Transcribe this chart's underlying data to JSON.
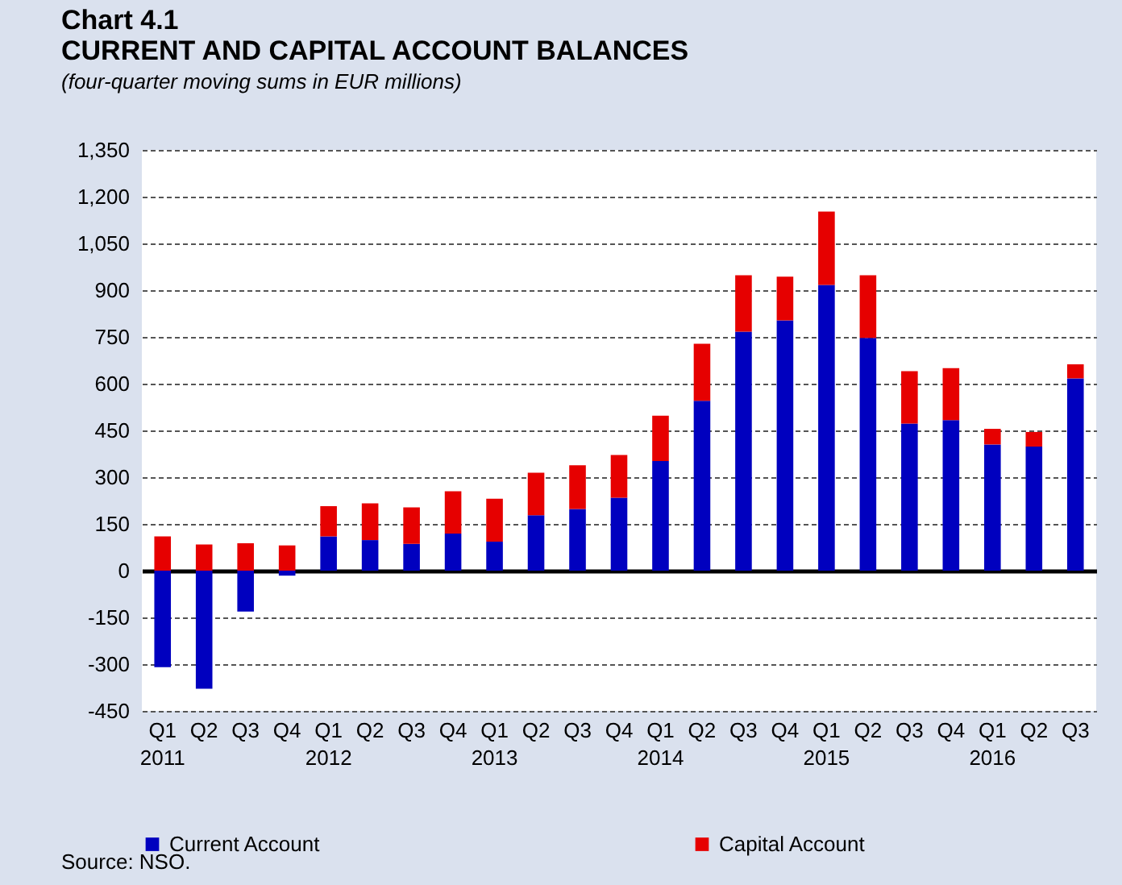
{
  "chart_data": {
    "type": "bar",
    "title": "Chart 4.1\nCURRENT AND CAPITAL ACCOUNT BALANCES",
    "subtitle": "(four-quarter moving sums in EUR millions)",
    "categories": [
      "Q1\n2011",
      "Q2",
      "Q3",
      "Q4",
      "Q1\n2012",
      "Q2",
      "Q3",
      "Q4",
      "Q1\n2013",
      "Q2",
      "Q3",
      "Q4",
      "Q1\n2014",
      "Q2",
      "Q3",
      "Q4",
      "Q1\n2015",
      "Q2",
      "Q3",
      "Q4",
      "Q1\n2016",
      "Q2",
      "Q3"
    ],
    "series": [
      {
        "name": "Current Account",
        "color": "#0000bf",
        "values": [
          -310,
          -379,
          -131,
          -16,
          110,
          98,
          86,
          119,
          93,
          178,
          198,
          234,
          352,
          545,
          767,
          803,
          917,
          747,
          472,
          483,
          405,
          398,
          617
        ]
      },
      {
        "name": "Capital Account",
        "color": "#e60000",
        "values": [
          110,
          84,
          88,
          81,
          97,
          118,
          117,
          136,
          138,
          136,
          140,
          137,
          145,
          183,
          181,
          140,
          235,
          201,
          168,
          167,
          50,
          47,
          45
        ]
      }
    ],
    "stacked": true,
    "ylim": [
      -450,
      1350
    ],
    "yticks": [
      -450,
      -300,
      -150,
      0,
      150,
      300,
      450,
      600,
      750,
      900,
      {
        "value": 1050,
        "label": "1,050"
      },
      {
        "value": 1200,
        "label": "1,200"
      },
      {
        "value": 1350,
        "label": "1,350"
      }
    ],
    "grid": "y",
    "legend": "bottom",
    "annotations": [
      "Source: NSO."
    ]
  }
}
